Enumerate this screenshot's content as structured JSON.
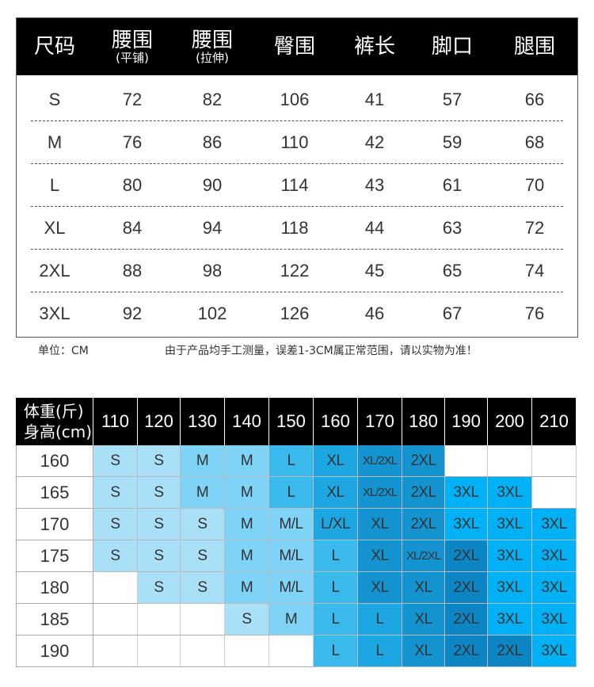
{
  "size_table": {
    "headers": [
      {
        "main": "尺码",
        "sub": ""
      },
      {
        "main": "腰围",
        "sub": "(平铺)"
      },
      {
        "main": "腰围",
        "sub": "(拉伸)"
      },
      {
        "main": "臀围",
        "sub": ""
      },
      {
        "main": "裤长",
        "sub": ""
      },
      {
        "main": "脚口",
        "sub": ""
      },
      {
        "main": "腿围",
        "sub": ""
      }
    ],
    "rows": [
      [
        "S",
        "72",
        "82",
        "106",
        "41",
        "57",
        "66"
      ],
      [
        "M",
        "76",
        "86",
        "110",
        "42",
        "59",
        "68"
      ],
      [
        "L",
        "80",
        "90",
        "114",
        "43",
        "61",
        "70"
      ],
      [
        "XL",
        "84",
        "94",
        "118",
        "44",
        "63",
        "72"
      ],
      [
        "2XL",
        "88",
        "98",
        "122",
        "45",
        "65",
        "74"
      ],
      [
        "3XL",
        "92",
        "102",
        "126",
        "46",
        "67",
        "76"
      ]
    ]
  },
  "notes": {
    "unit": "单位：CM",
    "disclaimer": "由于产品均手工测量，误差1-3CM属正常范围，请以实物为准！"
  },
  "fit_table": {
    "corner_line1": "体重(斤)",
    "corner_line2": "身高(cm)",
    "weights": [
      "110",
      "120",
      "130",
      "140",
      "150",
      "160",
      "170",
      "180",
      "190",
      "200",
      "210"
    ],
    "rows": [
      {
        "height": "160",
        "sizes": [
          "S",
          "S",
          "M",
          "M",
          "L",
          "XL",
          "XL/2XL",
          "2XL",
          "",
          "",
          ""
        ]
      },
      {
        "height": "165",
        "sizes": [
          "S",
          "S",
          "M",
          "M",
          "L",
          "XL",
          "XL/2XL",
          "2XL",
          "3XL",
          "3XL",
          ""
        ]
      },
      {
        "height": "170",
        "sizes": [
          "S",
          "S",
          "S",
          "M",
          "M/L",
          "L/XL",
          "XL",
          "2XL",
          "3XL",
          "3XL",
          "3XL"
        ]
      },
      {
        "height": "175",
        "sizes": [
          "S",
          "S",
          "S",
          "M",
          "M/L",
          "L",
          "XL",
          "XL/2XL",
          "2XL",
          "3XL",
          "3XL"
        ]
      },
      {
        "height": "180",
        "sizes": [
          "",
          "S",
          "S",
          "M",
          "M/L",
          "L",
          "XL",
          "XL",
          "2XL",
          "3XL",
          "3XL"
        ]
      },
      {
        "height": "185",
        "sizes": [
          "",
          "",
          "",
          "S",
          "M",
          "L",
          "L",
          "XL",
          "2XL",
          "3XL",
          "3XL"
        ]
      },
      {
        "height": "190",
        "sizes": [
          "",
          "",
          "",
          "",
          "",
          "L",
          "L",
          "XL",
          "2XL",
          "2XL",
          "3XL"
        ]
      }
    ],
    "size_colors": {
      "S": "#a9e0f7",
      "M": "#7fd3f7",
      "M/L": "#7fd3f7",
      "L": "#3ab9ec",
      "L/XL": "#1ca7e2",
      "XL": "#1ca7e2",
      "XL/2XL": "#1393cf",
      "2XL": "#1393cf",
      "3XL": "#00b1f5",
      "empty": "#ffffff"
    },
    "override_colors": [
      {
        "row": 0,
        "col": 3,
        "color": "#7fd3f7"
      },
      {
        "row": 1,
        "col": 3,
        "color": "#7fd3f7"
      },
      {
        "row": 2,
        "col": 3,
        "color": "#7fd3f7"
      },
      {
        "row": 3,
        "col": 3,
        "color": "#7fd3f7"
      },
      {
        "row": 4,
        "col": 3,
        "color": "#7fd3f7"
      },
      {
        "row": 2,
        "col": 2,
        "color": "#a9e0f7"
      },
      {
        "row": 3,
        "col": 2,
        "color": "#a9e0f7"
      },
      {
        "row": 4,
        "col": 2,
        "color": "#a9e0f7"
      },
      {
        "row": 5,
        "col": 3,
        "color": "#a9e0f7"
      },
      {
        "row": 5,
        "col": 4,
        "color": "#7fd3f7"
      },
      {
        "row": 5,
        "col": 5,
        "color": "#3ab9ec"
      },
      {
        "row": 6,
        "col": 5,
        "color": "#3ab9ec"
      },
      {
        "row": 5,
        "col": 6,
        "color": "#1ca7e2"
      },
      {
        "row": 6,
        "col": 6,
        "color": "#1ca7e2"
      },
      {
        "row": 3,
        "col": 5,
        "color": "#3ab9ec"
      },
      {
        "row": 4,
        "col": 5,
        "color": "#3ab9ec"
      },
      {
        "row": 2,
        "col": 6,
        "color": "#1393cf"
      },
      {
        "row": 3,
        "col": 6,
        "color": "#1393cf"
      },
      {
        "row": 4,
        "col": 6,
        "color": "#1393cf"
      },
      {
        "row": 2,
        "col": 7,
        "color": "#1393cf"
      },
      {
        "row": 3,
        "col": 7,
        "color": "#1393cf"
      },
      {
        "row": 4,
        "col": 7,
        "color": "#1393cf"
      },
      {
        "row": 5,
        "col": 7,
        "color": "#1393cf"
      },
      {
        "row": 6,
        "col": 7,
        "color": "#1393cf"
      },
      {
        "row": 3,
        "col": 8,
        "color": "#0b85c4"
      },
      {
        "row": 4,
        "col": 8,
        "color": "#0b85c4"
      },
      {
        "row": 5,
        "col": 8,
        "color": "#0b85c4"
      },
      {
        "row": 6,
        "col": 8,
        "color": "#0b85c4"
      },
      {
        "row": 6,
        "col": 9,
        "color": "#0b85c4"
      }
    ]
  }
}
